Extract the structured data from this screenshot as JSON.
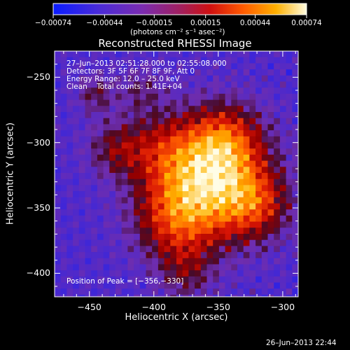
{
  "chart_data": {
    "type": "heatmap",
    "title": "Reconstructed RHESSI Image",
    "xlabel": "Heliocentric X (arcsec)",
    "ylabel": "Heliocentric Y (arcsec)",
    "xlim": [
      -477,
      -288
    ],
    "ylim": [
      -418,
      -230
    ],
    "xticks": [
      -450,
      -400,
      -350,
      -300
    ],
    "xtick_labels": [
      "−450",
      "−400",
      "−350",
      "−300"
    ],
    "yticks": [
      -250,
      -300,
      -350,
      -400
    ],
    "ytick_labels": [
      "−250",
      "−300",
      "−350",
      "−400"
    ],
    "colorbar": {
      "min": -0.00074,
      "max": 0.00074,
      "ticks": [
        -0.00074,
        -0.00044,
        -0.00015,
        0.00015,
        0.00044,
        0.00074
      ],
      "tick_labels": [
        "−0.00074",
        "−0.00044",
        "−0.00015",
        "0.00015",
        "0.00044",
        "0.00074"
      ],
      "unit_label": "(photons cm⁻² s⁻¹ asec⁻²)"
    },
    "peak": [
      -356,
      -330
    ],
    "annotations": [
      "27–Jun–2013 02:51:28.000 to 02:55:08.000",
      "Detectors: 3F 5F 6F 7F 8F 9F, Att 0",
      "Energy Range: 12.0 – 25.0 keV",
      "Clean    Total counts: 1.41E+04"
    ],
    "peak_label": "Position of Peak = [−356,−330]"
  },
  "timestamp": "26–Jun–2013 22:44",
  "colors": {
    "background": "#000000",
    "foreground": "#ffffff"
  }
}
